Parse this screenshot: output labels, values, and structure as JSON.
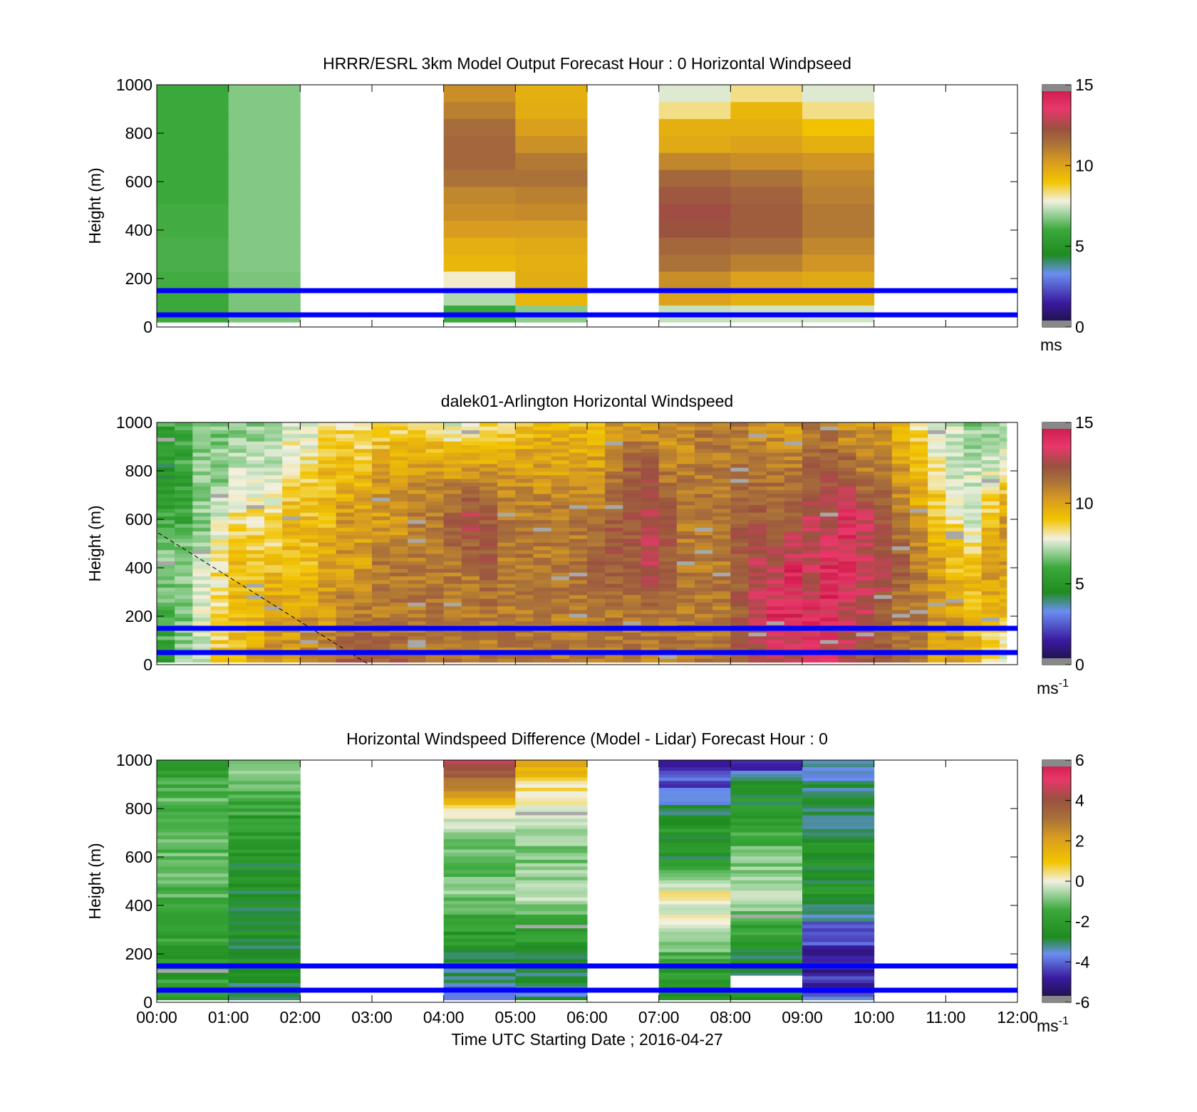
{
  "figure": {
    "xlabel": "Time UTC  Starting Date ; 2016-04-27",
    "x_ticks": [
      "00:00",
      "01:00",
      "02:00",
      "03:00",
      "04:00",
      "05:00",
      "06:00",
      "07:00",
      "08:00",
      "09:00",
      "10:00",
      "11:00",
      "12:00"
    ]
  },
  "chart_data": [
    {
      "type": "heatmap",
      "title": "HRRR/ESRL 3km Model Output   Forecast Hour : 0 Horizontal Windpseed",
      "ylabel": "Height (m)",
      "y_ticks": [
        "0",
        "200",
        "400",
        "600",
        "800",
        "1000"
      ],
      "xlim_hours": [
        0,
        12
      ],
      "ylim": [
        0,
        1000
      ],
      "colorbar": {
        "ticks": [
          "0",
          "5",
          "10",
          "15"
        ],
        "range": [
          0,
          15
        ],
        "unit": "ms",
        "unit_sup": ""
      },
      "reference_lines_m": [
        50,
        150
      ],
      "columns": [
        {
          "start_hour": 0,
          "values": [
            5.0,
            5.0,
            5.1,
            5.2,
            5.2,
            5.1,
            5.1,
            5.0,
            5.0,
            5.0,
            5.0,
            5.0,
            5.0,
            5.0
          ]
        },
        {
          "start_hour": 1,
          "values": [
            5.8,
            5.8,
            5.8,
            5.9,
            5.9,
            5.9,
            5.9,
            5.9,
            5.9,
            5.9,
            5.9,
            5.9,
            5.9,
            5.9
          ]
        },
        {
          "start_hour": 4,
          "values": [
            5.0,
            6.5,
            7.6,
            9.2,
            9.4,
            10.0,
            10.4,
            10.6,
            11.2,
            11.6,
            11.6,
            11.4,
            10.8,
            10.4
          ]
        },
        {
          "start_hour": 5,
          "values": [
            6.0,
            9.2,
            9.5,
            9.4,
            9.6,
            10.0,
            10.5,
            10.8,
            11.2,
            11.0,
            10.3,
            9.9,
            9.5,
            9.4
          ]
        },
        {
          "start_hour": 7,
          "values": [
            6.8,
            9.8,
            10.4,
            11.2,
            11.6,
            12.4,
            12.6,
            12.2,
            11.6,
            10.6,
            9.6,
            9.4,
            8.0,
            7.2
          ]
        },
        {
          "start_hour": 8,
          "values": [
            7.0,
            9.4,
            9.8,
            10.8,
            11.4,
            12.0,
            12.0,
            11.8,
            11.2,
            10.4,
            9.8,
            9.4,
            9.2,
            8.0
          ]
        },
        {
          "start_hour": 9,
          "values": [
            7.0,
            9.4,
            9.6,
            10.2,
            10.6,
            11.0,
            11.0,
            10.8,
            10.6,
            10.2,
            9.4,
            8.8,
            8.0,
            7.2
          ]
        }
      ]
    },
    {
      "type": "heatmap",
      "title": "dalek01-Arlington  Horizontal Windspeed",
      "ylabel": "Height (m)",
      "y_ticks": [
        "0",
        "200",
        "400",
        "600",
        "800",
        "1000"
      ],
      "xlim_hours": [
        0,
        12
      ],
      "ylim": [
        0,
        1000
      ],
      "colorbar": {
        "ticks": [
          "0",
          "5",
          "10",
          "15"
        ],
        "range": [
          0,
          15
        ],
        "unit": "ms",
        "unit_sup": "-1"
      },
      "reference_lines_m": [
        50,
        150
      ],
      "profile_heights_m": [
        0,
        200,
        400,
        600,
        800,
        1000
      ],
      "profiles": [
        {
          "hour": 0.0,
          "values": [
            5,
            5,
            6,
            5,
            4,
            5
          ]
        },
        {
          "hour": 0.25,
          "values": [
            6,
            6,
            6,
            5,
            5,
            5
          ]
        },
        {
          "hour": 0.5,
          "values": [
            7,
            7,
            7,
            6,
            6,
            6
          ]
        },
        {
          "hour": 0.75,
          "values": [
            9,
            8,
            8,
            7,
            6,
            6
          ]
        },
        {
          "hour": 1.0,
          "values": [
            9,
            9,
            9,
            8,
            7,
            6
          ]
        },
        {
          "hour": 1.25,
          "values": [
            10,
            9,
            9,
            8,
            7,
            6
          ]
        },
        {
          "hour": 1.5,
          "values": [
            10,
            10,
            9,
            8,
            7,
            6
          ]
        },
        {
          "hour": 1.75,
          "values": [
            10,
            10,
            9,
            9,
            8,
            7
          ]
        },
        {
          "hour": 2.0,
          "values": [
            11,
            10,
            9,
            9,
            8,
            7
          ]
        },
        {
          "hour": 2.25,
          "values": [
            11,
            10,
            10,
            9,
            9,
            8
          ]
        },
        {
          "hour": 2.5,
          "values": [
            12,
            11,
            10,
            10,
            9,
            8
          ]
        },
        {
          "hour": 2.75,
          "values": [
            12,
            11,
            10,
            10,
            9,
            8
          ]
        },
        {
          "hour": 3.0,
          "values": [
            12,
            11,
            11,
            10,
            10,
            8
          ]
        },
        {
          "hour": 3.25,
          "values": [
            12,
            11,
            11,
            10,
            10,
            8
          ]
        },
        {
          "hour": 3.5,
          "values": [
            11,
            11,
            11,
            11,
            10,
            8
          ]
        },
        {
          "hour": 3.75,
          "values": [
            11,
            11,
            11,
            11,
            10,
            8
          ]
        },
        {
          "hour": 4.0,
          "values": [
            11,
            11,
            11,
            12,
            10,
            7
          ]
        },
        {
          "hour": 4.25,
          "values": [
            11,
            11,
            11,
            13,
            10,
            8
          ]
        },
        {
          "hour": 4.5,
          "values": [
            11,
            11,
            12,
            12,
            10,
            8
          ]
        },
        {
          "hour": 4.75,
          "values": [
            11,
            11,
            11,
            11,
            10,
            8
          ]
        },
        {
          "hour": 5.0,
          "values": [
            11,
            11,
            11,
            11,
            10,
            9
          ]
        },
        {
          "hour": 5.25,
          "values": [
            11,
            11,
            11,
            11,
            10,
            9
          ]
        },
        {
          "hour": 5.5,
          "values": [
            11,
            11,
            11,
            11,
            10,
            9
          ]
        },
        {
          "hour": 5.75,
          "values": [
            11,
            11,
            11,
            11,
            10,
            9
          ]
        },
        {
          "hour": 6.0,
          "values": [
            11,
            11,
            12,
            11,
            10,
            9
          ]
        },
        {
          "hour": 6.25,
          "values": [
            11,
            11,
            12,
            12,
            11,
            10
          ]
        },
        {
          "hour": 6.5,
          "values": [
            11,
            11,
            12,
            12,
            12,
            10
          ]
        },
        {
          "hour": 6.75,
          "values": [
            11,
            11,
            13,
            13,
            12,
            10
          ]
        },
        {
          "hour": 7.0,
          "values": [
            11,
            11,
            12,
            12,
            11,
            10
          ]
        },
        {
          "hour": 7.25,
          "values": [
            11,
            11,
            11,
            11,
            11,
            10
          ]
        },
        {
          "hour": 7.5,
          "values": [
            11,
            11,
            11,
            11,
            11,
            11
          ]
        },
        {
          "hour": 7.75,
          "values": [
            11,
            11,
            11,
            11,
            11,
            11
          ]
        },
        {
          "hour": 8.0,
          "values": [
            12,
            12,
            12,
            12,
            11,
            11
          ]
        },
        {
          "hour": 8.25,
          "values": [
            13,
            13,
            13,
            12,
            11,
            10
          ]
        },
        {
          "hour": 8.5,
          "values": [
            13,
            14,
            13,
            12,
            11,
            10
          ]
        },
        {
          "hour": 8.75,
          "values": [
            13,
            14,
            14,
            12,
            11,
            10
          ]
        },
        {
          "hour": 9.0,
          "values": [
            13,
            14,
            13,
            13,
            12,
            11
          ]
        },
        {
          "hour": 9.25,
          "values": [
            13,
            14,
            14,
            13,
            12,
            11
          ]
        },
        {
          "hour": 9.5,
          "values": [
            13,
            13,
            14,
            14,
            12,
            10
          ]
        },
        {
          "hour": 9.75,
          "values": [
            12,
            13,
            13,
            13,
            11,
            10
          ]
        },
        {
          "hour": 10.0,
          "values": [
            12,
            12,
            13,
            12,
            11,
            10
          ]
        },
        {
          "hour": 10.25,
          "values": [
            11,
            11,
            12,
            11,
            10,
            9
          ]
        },
        {
          "hour": 10.5,
          "values": [
            11,
            11,
            11,
            10,
            9,
            8
          ]
        },
        {
          "hour": 10.75,
          "values": [
            10,
            10,
            10,
            9,
            8,
            7
          ]
        },
        {
          "hour": 11.0,
          "values": [
            10,
            10,
            9,
            8,
            7,
            7
          ]
        },
        {
          "hour": 11.25,
          "values": [
            9,
            9,
            9,
            7,
            7,
            6
          ]
        },
        {
          "hour": 11.5,
          "values": [
            8,
            9,
            10,
            9,
            7,
            6
          ]
        },
        {
          "hour": 11.75,
          "values": [
            7,
            9,
            10,
            10,
            8,
            6
          ]
        }
      ],
      "data_end_hour": 11.85
    },
    {
      "type": "heatmap",
      "title": "Horizontal Windspeed Difference (Model - Lidar) Forecast Hour : 0",
      "ylabel": "Height (m)",
      "y_ticks": [
        "0",
        "200",
        "400",
        "600",
        "800",
        "1000"
      ],
      "xlim_hours": [
        0,
        12
      ],
      "ylim": [
        0,
        1000
      ],
      "colorbar": {
        "ticks": [
          "-6",
          "-4",
          "-2",
          "0",
          "2",
          "4",
          "6"
        ],
        "range": [
          -6,
          6
        ],
        "unit": "ms",
        "unit_sup": "-1"
      },
      "reference_lines_m": [
        50,
        150
      ],
      "profile_heights_m": [
        30,
        150,
        300,
        450,
        600,
        750,
        900,
        1000
      ],
      "columns": [
        {
          "start_hour": 0,
          "values": [
            -2.2,
            -2.4,
            -2.1,
            -1.8,
            -1.7,
            -1.6,
            -1.9,
            -2.3
          ]
        },
        {
          "start_hour": 1,
          "values": [
            -3.2,
            -3.0,
            -2.9,
            -3.0,
            -2.8,
            -2.4,
            -1.6,
            -1.2
          ]
        },
        {
          "start_hour": 4,
          "values": [
            -4.2,
            -3.2,
            -2.4,
            -1.2,
            -1.8,
            -0.5,
            2.8,
            4.2
          ]
        },
        {
          "start_hour": 5,
          "values": [
            -3.5,
            -3.2,
            -2.2,
            -0.6,
            -1.5,
            -0.6,
            0.5,
            2.0
          ]
        },
        {
          "start_hour": 7,
          "values": [
            -3.0,
            -2.4,
            -0.5,
            0.2,
            -3.0,
            -2.6,
            -4.6,
            -5.0
          ]
        },
        {
          "start_hour": 8,
          "values": [
            -2.6,
            -3.2,
            -2.2,
            -0.7,
            -1.4,
            -2.6,
            -3.0,
            -5.4
          ]
        },
        {
          "start_hour": 9,
          "values": [
            -4.4,
            -5.2,
            -4.4,
            -2.8,
            -3.0,
            -3.2,
            -3.4,
            -4.2
          ]
        }
      ],
      "missing_patch": {
        "hour_from": 8.0,
        "hour_to": 9.0,
        "height_from": 50,
        "height_to": 110
      }
    }
  ],
  "colors": {
    "reference_line": "#0000ff",
    "colormap": [
      "#1a1038",
      "#3a1aa0",
      "#6a8ef0",
      "#1e8c1e",
      "#3aa83a",
      "#a0d4a0",
      "#f2f0e0",
      "#f2c400",
      "#d89c20",
      "#a8703a",
      "#9a5040",
      "#e8386a",
      "#c81444"
    ]
  }
}
